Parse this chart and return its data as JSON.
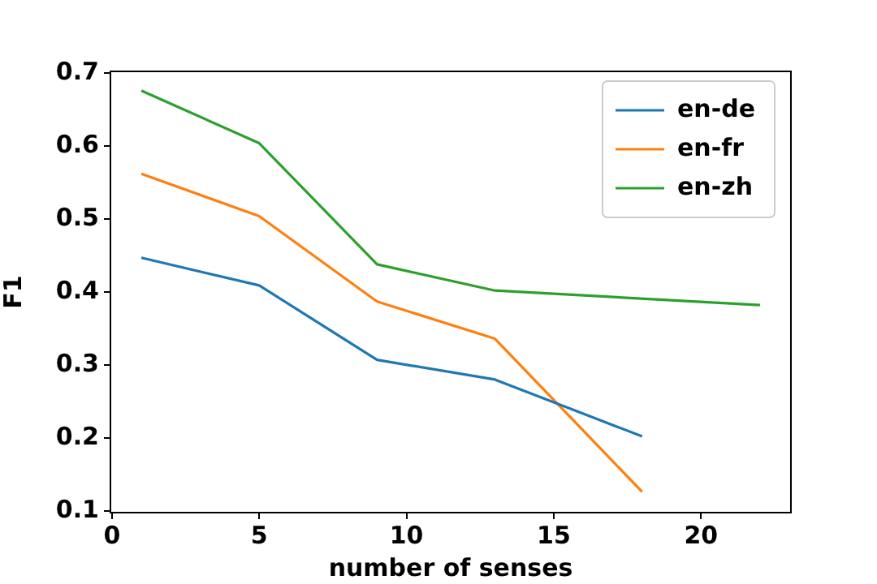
{
  "chart_data": {
    "type": "line",
    "xlabel": "number of senses",
    "ylabel": "F1",
    "xlim": [
      -0.05,
      23.05
    ],
    "xticks": [
      0,
      5,
      10,
      15,
      20
    ],
    "ylim": [
      0.0975,
      0.7025
    ],
    "yticks": [
      0.1,
      0.2,
      0.3,
      0.4,
      0.5,
      0.6,
      0.7
    ],
    "grid": false,
    "legend": "top right",
    "marker": "none",
    "line_style": "solid",
    "series": [
      {
        "name": "en-de",
        "color": "#1f77b4",
        "x": [
          1,
          5,
          9,
          13,
          18
        ],
        "values": [
          0.447,
          0.409,
          0.307,
          0.28,
          0.202
        ]
      },
      {
        "name": "en-fr",
        "color": "#ff7f0e",
        "x": [
          1,
          5,
          9,
          13,
          18
        ],
        "values": [
          0.562,
          0.504,
          0.387,
          0.336,
          0.126
        ]
      },
      {
        "name": "en-zh",
        "color": "#2ca02c",
        "x": [
          1,
          5,
          9,
          13,
          22
        ],
        "values": [
          0.676,
          0.604,
          0.438,
          0.402,
          0.382
        ]
      }
    ]
  }
}
